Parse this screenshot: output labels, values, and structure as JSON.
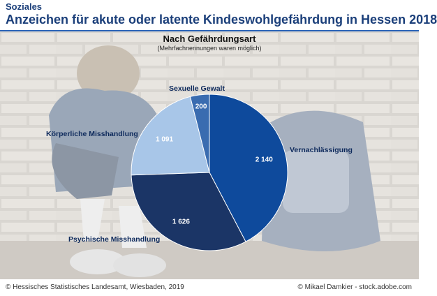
{
  "header": {
    "category": "Soziales",
    "title": "Anzeichen für akute oder latente Kindeswohlgefährdung in Hessen 2018"
  },
  "footer": {
    "source": "© Hessisches Statistisches Landesamt, Wiesbaden, 2019",
    "photo_credit": "© Mikael Damkier - stock.adobe.com"
  },
  "chart_data": {
    "type": "pie",
    "title": "Nach Gefährdungsart",
    "subtitle": "(Mehrfachnennungen waren möglich)",
    "categories": [
      "Vernachlässigung",
      "Psychische Misshandlung",
      "Körperliche Misshandlung",
      "Sexuelle Gewalt"
    ],
    "values": [
      2140,
      1626,
      1091,
      200
    ],
    "value_labels": [
      "2 140",
      "1 626",
      "1 091",
      "200"
    ],
    "colors": [
      "#0e4a9c",
      "#1b3566",
      "#a8c6e8",
      "#3a6cb0"
    ],
    "start": "12 o'clock",
    "direction": "clockwise"
  }
}
